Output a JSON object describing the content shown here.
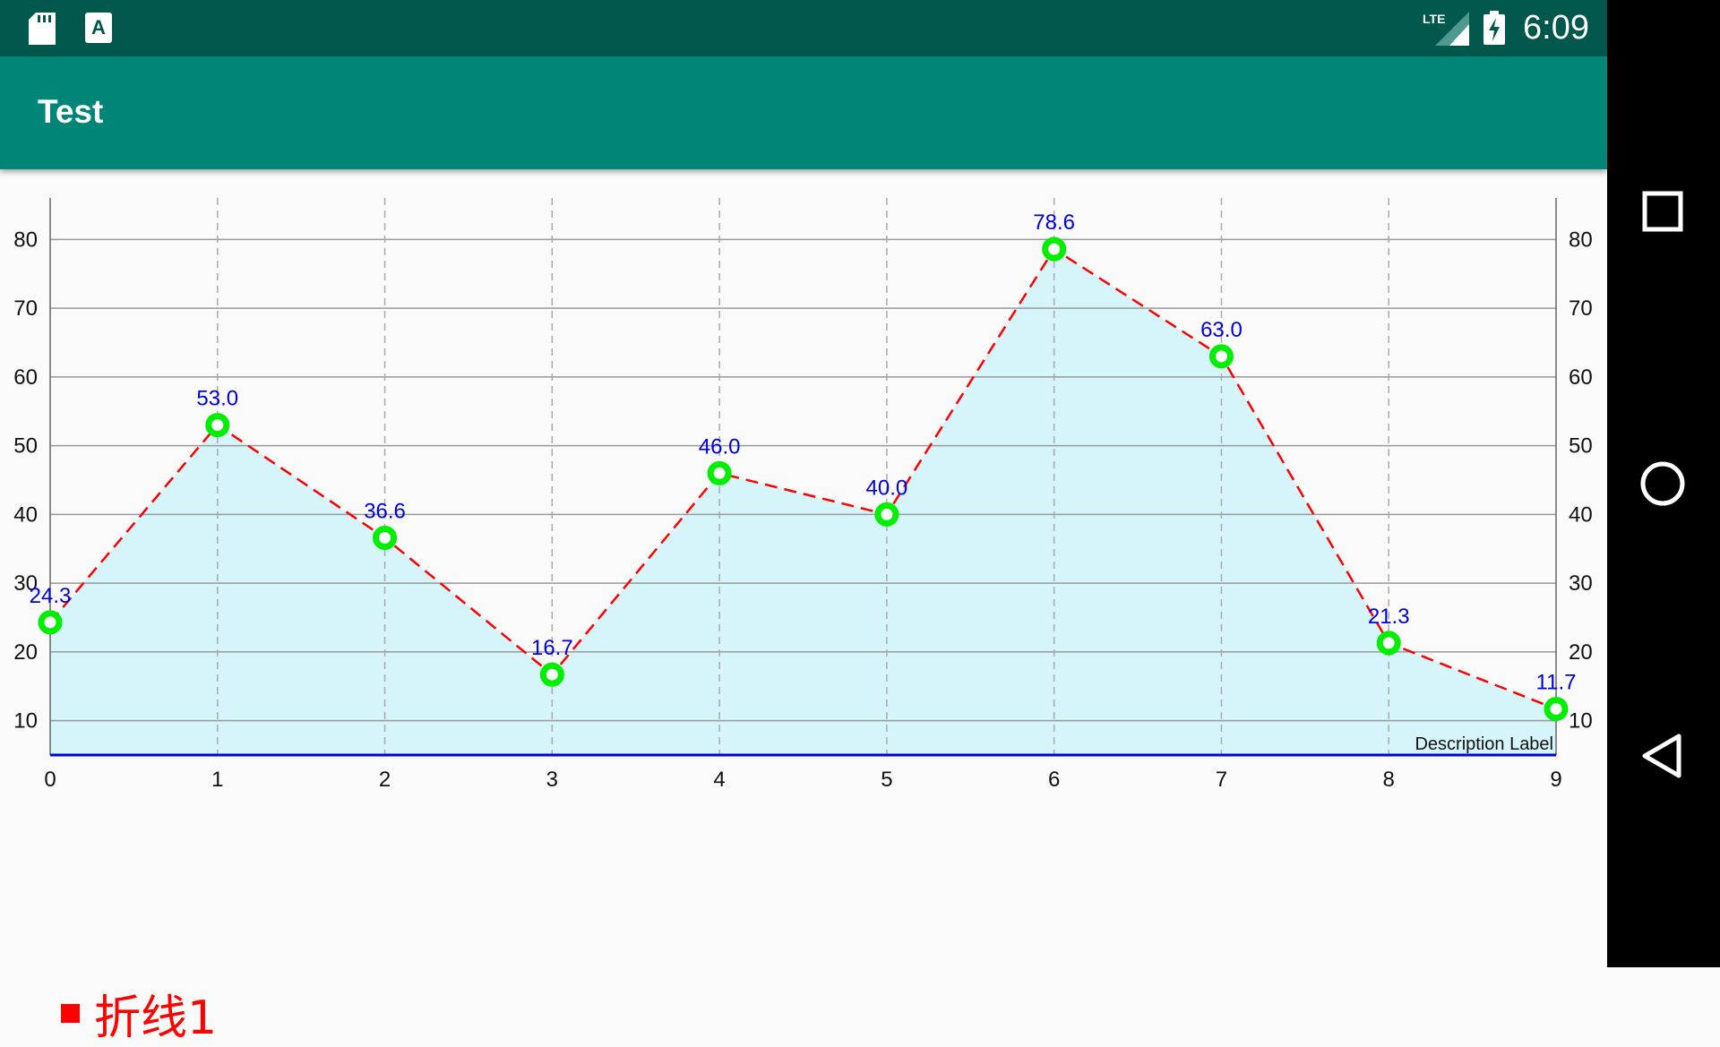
{
  "status_bar": {
    "time": "6:09",
    "network_label": "LTE",
    "icons": [
      "sd-card-icon",
      "a-notification-icon",
      "lte-signal-icon",
      "battery-charging-icon"
    ]
  },
  "app_bar": {
    "title": "Test",
    "color": "#008577"
  },
  "nav_bar": {
    "buttons": [
      "recents-icon",
      "home-icon",
      "back-icon"
    ]
  },
  "chart_data": {
    "type": "line",
    "x": [
      0,
      1,
      2,
      3,
      4,
      5,
      6,
      7,
      8,
      9
    ],
    "series": [
      {
        "name": "折线1",
        "values": [
          24.3,
          53.0,
          36.6,
          16.7,
          46.0,
          40.0,
          78.6,
          63.0,
          21.3,
          11.7
        ],
        "value_labels": [
          "24.3",
          "53.0",
          "36.6",
          "16.7",
          "46.0",
          "40.0",
          "78.6",
          "63.0",
          "21.3",
          "11.7"
        ],
        "line_color": "#ff0000",
        "line_style": "dashed",
        "marker_color": "#00ee00",
        "fill_color": "#d6f5fb",
        "value_label_color": "#0000dd"
      }
    ],
    "x_ticks": [
      "0",
      "1",
      "2",
      "3",
      "4",
      "5",
      "6",
      "7",
      "8",
      "9"
    ],
    "y_ticks": [
      "10",
      "20",
      "30",
      "40",
      "50",
      "60",
      "70",
      "80"
    ],
    "y_tick_values": [
      10,
      20,
      30,
      40,
      50,
      60,
      70,
      80
    ],
    "ylim": [
      5,
      85
    ],
    "xlim": [
      0,
      9
    ],
    "y_axis_right": true,
    "grid": true,
    "x_axis_color": "#0000dd",
    "description": "Description Label",
    "legend_position": "bottom-left"
  }
}
